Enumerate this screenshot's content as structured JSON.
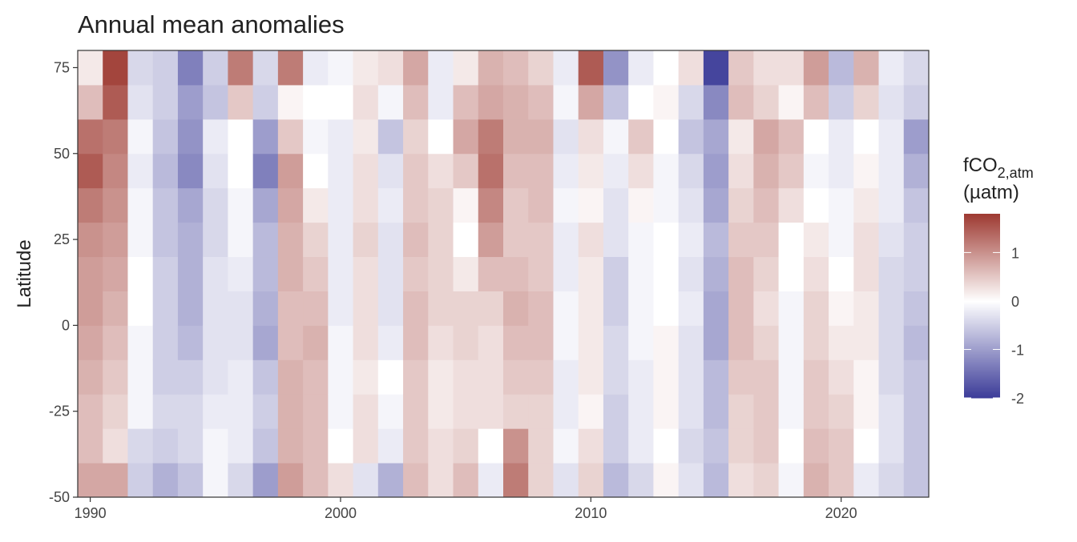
{
  "chart_data": {
    "type": "heatmap",
    "title": "Annual mean anomalies",
    "y_label": "Latitude",
    "legend_title": {
      "main": "fCO",
      "sub": "2,atm",
      "unit": "(µatm)"
    },
    "x": [
      1990,
      1991,
      1992,
      1993,
      1994,
      1995,
      1996,
      1997,
      1998,
      1999,
      2000,
      2001,
      2002,
      2003,
      2004,
      2005,
      2006,
      2007,
      2008,
      2009,
      2010,
      2011,
      2012,
      2013,
      2014,
      2015,
      2016,
      2017,
      2018,
      2019,
      2020,
      2021,
      2022,
      2023
    ],
    "xlim": [
      1989.5,
      2023.5
    ],
    "xticks": [
      1990,
      2000,
      2010,
      2020
    ],
    "y_bins": [
      -50,
      -40,
      -30,
      -20,
      -10,
      0,
      10,
      20,
      30,
      40,
      50,
      60,
      70,
      80
    ],
    "ylim": [
      -50,
      80
    ],
    "yticks": [
      -50,
      -25,
      0,
      25,
      50,
      75
    ],
    "values": [
      [
        0.8,
        0.6,
        0.6,
        0.7,
        0.8,
        0.9,
        0.9,
        1.0,
        1.2,
        1.5,
        1.3,
        0.6,
        0.2
      ],
      [
        0.8,
        0.3,
        0.4,
        0.5,
        0.6,
        0.7,
        0.8,
        0.9,
        1.0,
        1.1,
        1.2,
        1.5,
        1.7
      ],
      [
        -0.5,
        -0.4,
        -0.1,
        -0.1,
        -0.1,
        0,
        0,
        -0.1,
        -0.1,
        -0.2,
        -0.1,
        -0.3,
        -0.4
      ],
      [
        -0.8,
        -0.5,
        -0.4,
        -0.5,
        -0.5,
        -0.5,
        -0.5,
        -0.6,
        -0.6,
        -0.7,
        -0.6,
        -0.5,
        -0.5
      ],
      [
        -0.6,
        -0.4,
        -0.4,
        -0.5,
        -0.7,
        -0.8,
        -0.8,
        -0.8,
        -0.9,
        -1.2,
        -1.1,
        -1.0,
        -1.3
      ],
      [
        -0.1,
        -0.1,
        -0.2,
        -0.3,
        -0.3,
        -0.3,
        -0.3,
        -0.4,
        -0.4,
        -0.3,
        -0.2,
        -0.6,
        -0.5
      ],
      [
        -0.4,
        -0.2,
        -0.2,
        -0.2,
        -0.3,
        -0.3,
        -0.2,
        -0.1,
        -0.1,
        0,
        0,
        0.5,
        1.2
      ],
      [
        -1.0,
        -0.6,
        -0.5,
        -0.6,
        -0.9,
        -0.8,
        -0.7,
        -0.7,
        -0.9,
        -1.3,
        -1.0,
        -0.5,
        -0.4
      ],
      [
        0.9,
        0.7,
        0.7,
        0.7,
        0.6,
        0.6,
        0.7,
        0.7,
        0.8,
        0.9,
        0.5,
        0.1,
        1.2
      ],
      [
        0.6,
        0.6,
        0.6,
        0.6,
        0.7,
        0.6,
        0.5,
        0.4,
        0.2,
        0,
        -0.1,
        0,
        -0.2
      ],
      [
        0.3,
        0,
        -0.1,
        -0.1,
        -0.1,
        -0.2,
        -0.2,
        -0.2,
        -0.2,
        -0.2,
        -0.2,
        0,
        -0.1
      ],
      [
        -0.3,
        0.3,
        0.3,
        0.2,
        0.3,
        0.3,
        0.3,
        0.4,
        0.3,
        0.3,
        0.2,
        0.3,
        0.2
      ],
      [
        -0.8,
        -0.2,
        -0.1,
        0,
        -0.2,
        -0.3,
        -0.3,
        -0.3,
        -0.2,
        -0.3,
        -0.6,
        -0.1,
        0.3
      ],
      [
        0.6,
        0.5,
        0.5,
        0.5,
        0.6,
        0.6,
        0.5,
        0.6,
        0.5,
        0.5,
        0.4,
        0.6,
        0.8
      ],
      [
        0.3,
        0.3,
        0.2,
        0.2,
        0.3,
        0.4,
        0.4,
        0.4,
        0.4,
        0.3,
        0,
        -0.2,
        -0.2
      ],
      [
        0.6,
        0.4,
        0.3,
        0.3,
        0.4,
        0.4,
        0.2,
        0,
        0.1,
        0.5,
        0.8,
        0.6,
        0.2
      ],
      [
        -0.2,
        0,
        0.3,
        0.3,
        0.3,
        0.4,
        0.6,
        0.9,
        1.1,
        1.3,
        1.2,
        0.8,
        0.7
      ],
      [
        1.2,
        1.0,
        0.4,
        0.5,
        0.6,
        0.7,
        0.6,
        0.5,
        0.5,
        0.6,
        0.7,
        0.7,
        0.6
      ],
      [
        0.4,
        0.4,
        0.4,
        0.5,
        0.6,
        0.6,
        0.5,
        0.5,
        0.6,
        0.6,
        0.7,
        0.6,
        0.4
      ],
      [
        -0.3,
        -0.1,
        -0.2,
        -0.2,
        -0.1,
        -0.1,
        -0.2,
        -0.2,
        -0.1,
        -0.2,
        -0.3,
        -0.1,
        -0.2
      ],
      [
        0.4,
        0.3,
        0.1,
        0.2,
        0.2,
        0.2,
        0.2,
        0.3,
        0.1,
        0.2,
        0.3,
        0.8,
        1.5
      ],
      [
        -0.7,
        -0.5,
        -0.5,
        -0.4,
        -0.4,
        -0.5,
        -0.5,
        -0.3,
        -0.3,
        -0.2,
        -0.1,
        -0.6,
        -1.1
      ],
      [
        -0.4,
        -0.2,
        -0.2,
        -0.2,
        -0.1,
        -0.1,
        -0.1,
        -0.1,
        0.1,
        0.3,
        0.5,
        0,
        -0.2
      ],
      [
        0.1,
        0,
        0.1,
        0.1,
        0.1,
        0,
        0,
        0,
        -0.1,
        -0.1,
        0,
        0.1,
        0
      ],
      [
        -0.3,
        -0.4,
        -0.3,
        -0.3,
        -0.3,
        -0.2,
        -0.3,
        -0.2,
        -0.3,
        -0.4,
        -0.6,
        -0.4,
        0.3
      ],
      [
        -0.7,
        -0.6,
        -0.7,
        -0.7,
        -0.9,
        -0.9,
        -0.8,
        -0.7,
        -0.9,
        -1.0,
        -0.9,
        -1.2,
        -1.9
      ],
      [
        0.3,
        0.4,
        0.4,
        0.5,
        0.6,
        0.6,
        0.6,
        0.5,
        0.4,
        0.3,
        0.2,
        0.6,
        0.5
      ],
      [
        0.4,
        0.5,
        0.5,
        0.5,
        0.4,
        0.3,
        0.4,
        0.5,
        0.6,
        0.7,
        0.8,
        0.4,
        0.3
      ],
      [
        -0.1,
        0,
        -0.1,
        -0.1,
        -0.1,
        -0.1,
        0,
        0,
        0.3,
        0.5,
        0.6,
        0.1,
        0.3
      ],
      [
        0.7,
        0.6,
        0.5,
        0.5,
        0.4,
        0.4,
        0.3,
        0.2,
        0,
        -0.1,
        0,
        0.6,
        0.9
      ],
      [
        0.5,
        0.5,
        0.4,
        0.3,
        0.2,
        0.1,
        0,
        -0.1,
        -0.1,
        -0.2,
        -0.2,
        -0.5,
        -0.7
      ],
      [
        -0.2,
        0,
        0.1,
        0.1,
        0.2,
        0.2,
        0.3,
        0.3,
        0.2,
        0.1,
        0,
        0.4,
        0.7
      ],
      [
        -0.4,
        -0.3,
        -0.3,
        -0.4,
        -0.4,
        -0.4,
        -0.4,
        -0.3,
        -0.2,
        -0.2,
        -0.2,
        -0.3,
        -0.2
      ],
      [
        -0.6,
        -0.6,
        -0.6,
        -0.6,
        -0.7,
        -0.6,
        -0.5,
        -0.5,
        -0.6,
        -0.8,
        -1.0,
        -0.5,
        -0.4
      ]
    ],
    "colorscale": {
      "low": "#3b3b98",
      "mid": "#ffffff",
      "high": "#9e3a32",
      "lim": [
        -2,
        1.8
      ],
      "ticks": [
        -2,
        -1,
        0,
        1
      ]
    }
  }
}
